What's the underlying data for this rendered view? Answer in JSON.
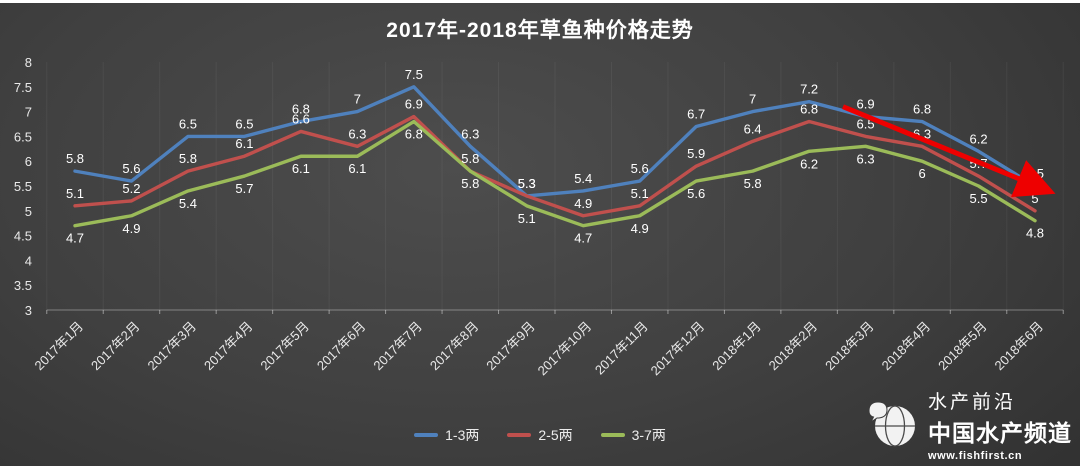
{
  "title": "2017年-2018年草鱼种价格走势",
  "chart_data": {
    "type": "line",
    "title": "2017年-2018年草鱼种价格走势",
    "categories": [
      "2017年1月",
      "2017年2月",
      "2017年3月",
      "2017年4月",
      "2017年5月",
      "2017年6月",
      "2017年7月",
      "2017年8月",
      "2017年9月",
      "2017年10月",
      "2017年11月",
      "2017年12月",
      "2018年1月",
      "2018年2月",
      "2018年3月",
      "2018年4月",
      "2018年5月",
      "2018年6月"
    ],
    "series": [
      {
        "name": "1-3两",
        "color": "#4f81bd",
        "label_position": "above",
        "values": [
          5.8,
          5.6,
          6.5,
          6.5,
          6.8,
          7,
          7.5,
          6.3,
          5.3,
          5.4,
          5.6,
          6.7,
          7,
          7.2,
          6.9,
          6.8,
          6.2,
          5.5
        ]
      },
      {
        "name": "2-5两",
        "color": "#c0504d",
        "label_position": "above",
        "values": [
          5.1,
          5.2,
          5.8,
          6.1,
          6.6,
          6.3,
          6.9,
          5.8,
          5.3,
          4.9,
          5.1,
          5.9,
          6.4,
          6.8,
          6.5,
          6.3,
          5.7,
          5
        ]
      },
      {
        "name": "3-7两",
        "color": "#9bbb59",
        "label_position": "below",
        "values": [
          4.7,
          4.9,
          5.4,
          5.7,
          6.1,
          6.1,
          6.8,
          5.8,
          5.1,
          4.7,
          4.9,
          5.6,
          5.8,
          6.2,
          6.3,
          6,
          5.5,
          4.8
        ]
      }
    ],
    "ylim": [
      3,
      8
    ],
    "yticks": [
      3,
      3.5,
      4,
      4.5,
      5,
      5.5,
      6,
      6.5,
      7,
      7.5,
      8
    ],
    "xlabel": "",
    "ylabel": "",
    "grid": "vertical-faint",
    "legend_position": "bottom-center",
    "annotation": {
      "type": "trend-arrow",
      "color": "#ee0000",
      "from": {
        "month_index": 13.6,
        "value": 7.1
      },
      "to": {
        "month_index": 17.2,
        "value": 5.42
      }
    }
  },
  "watermark": {
    "brand": "水产前沿",
    "channel": "中国水产频道",
    "url": "www.fishfirst.cn"
  },
  "colors": {
    "background_center": "#4d4d4d",
    "background_edge": "#2b2b2b",
    "title_text": "#ffffff",
    "axis_text": "#e9e9e9",
    "data_label_text": "#ffffff",
    "annotation_red": "#ee0000"
  }
}
